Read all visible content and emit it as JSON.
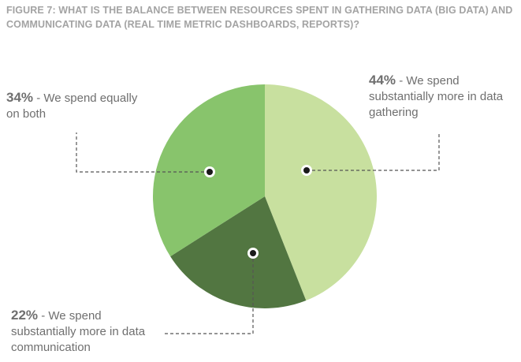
{
  "figure": {
    "title_line1": "FIGURE 7: WHAT IS THE BALANCE BETWEEN RESOURCES SPENT IN GATHERING DATA (BIG DATA) AND",
    "title_line2": "COMMUNICATING DATA (REAL TIME METRIC DASHBOARDS, REPORTS)?"
  },
  "chart_data": {
    "type": "pie",
    "title": "FIGURE 7: WHAT IS THE BALANCE BETWEEN RESOURCES SPENT IN GATHERING DATA (BIG DATA) AND COMMUNICATING DATA (REAL TIME METRIC DASHBOARDS, REPORTS)?",
    "slices": [
      {
        "label": "We spend substantially more in data gathering",
        "value": 44,
        "pct_text": "44%",
        "desc": " - We spend\nsubstantially more in data\ngathering",
        "color": "#c8e09f"
      },
      {
        "label": "We spend substantially more in data communication",
        "value": 22,
        "pct_text": "22%",
        "desc": " - We spend\nsubstantially more in data\ncommunication",
        "color": "#527641"
      },
      {
        "label": "We spend equally on both",
        "value": 34,
        "pct_text": "34%",
        "desc": " - We spend equally\non both",
        "color": "#88c46c"
      }
    ]
  }
}
